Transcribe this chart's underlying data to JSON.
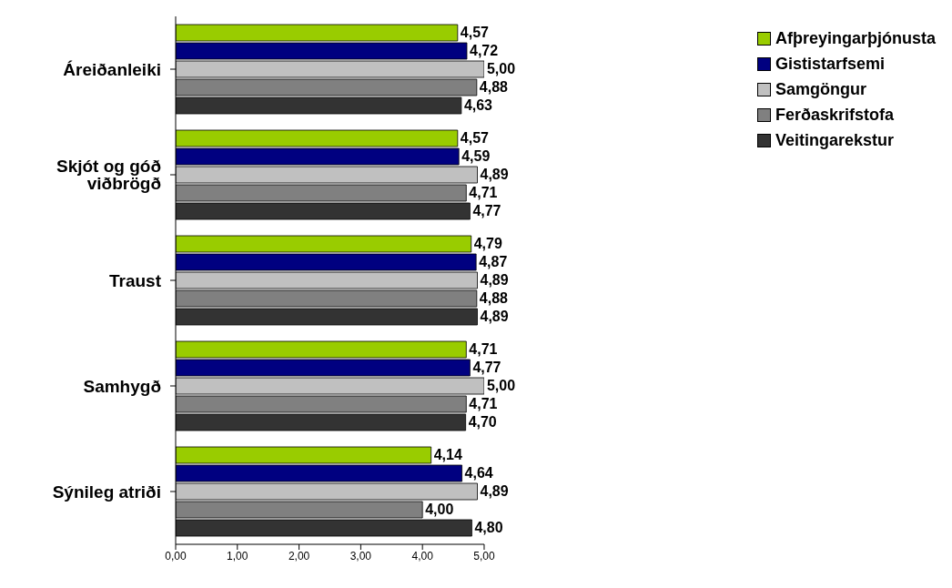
{
  "chart_data": {
    "type": "bar",
    "orientation": "horizontal",
    "categories": [
      "Áreiðanleiki",
      "Skjót og góð viðbrögð",
      "Traust",
      "Samhygð",
      "Sýnileg atriði"
    ],
    "series": [
      {
        "name": "Afþreyingarþjónusta",
        "color": "#99cc00",
        "values": [
          4.57,
          4.57,
          4.79,
          4.71,
          4.14
        ],
        "value_labels": [
          "4,57",
          "4,57",
          "4,79",
          "4,71",
          "4,14"
        ]
      },
      {
        "name": "Gististarfsemi",
        "color": "#000080",
        "values": [
          4.72,
          4.59,
          4.87,
          4.77,
          4.64
        ],
        "value_labels": [
          "4,72",
          "4,59",
          "4,87",
          "4,77",
          "4,64"
        ]
      },
      {
        "name": "Samgöngur",
        "color": "#c0c0c0",
        "values": [
          5.0,
          4.89,
          4.89,
          5.0,
          4.89
        ],
        "value_labels": [
          "5,00",
          "4,89",
          "4,89",
          "5,00",
          "4,89"
        ]
      },
      {
        "name": "Ferðaskrifstofa",
        "color": "#808080",
        "values": [
          4.88,
          4.71,
          4.88,
          4.71,
          4.0
        ],
        "value_labels": [
          "4,88",
          "4,71",
          "4,88",
          "4,71",
          "4,00"
        ]
      },
      {
        "name": "Veitingarekstur",
        "color": "#333333",
        "values": [
          4.63,
          4.77,
          4.89,
          4.7,
          4.8
        ],
        "value_labels": [
          "4,63",
          "4,77",
          "4,89",
          "4,70",
          "4,80"
        ]
      }
    ],
    "xlim": [
      0,
      5
    ],
    "xticks": [
      {
        "value": 0,
        "label": "0,00"
      },
      {
        "value": 1,
        "label": "1,00"
      },
      {
        "value": 2,
        "label": "2,00"
      },
      {
        "value": 3,
        "label": "3,00"
      },
      {
        "value": 4,
        "label": "4,00"
      },
      {
        "value": 5,
        "label": "5,00"
      }
    ],
    "grid": false,
    "legend": "top right"
  }
}
